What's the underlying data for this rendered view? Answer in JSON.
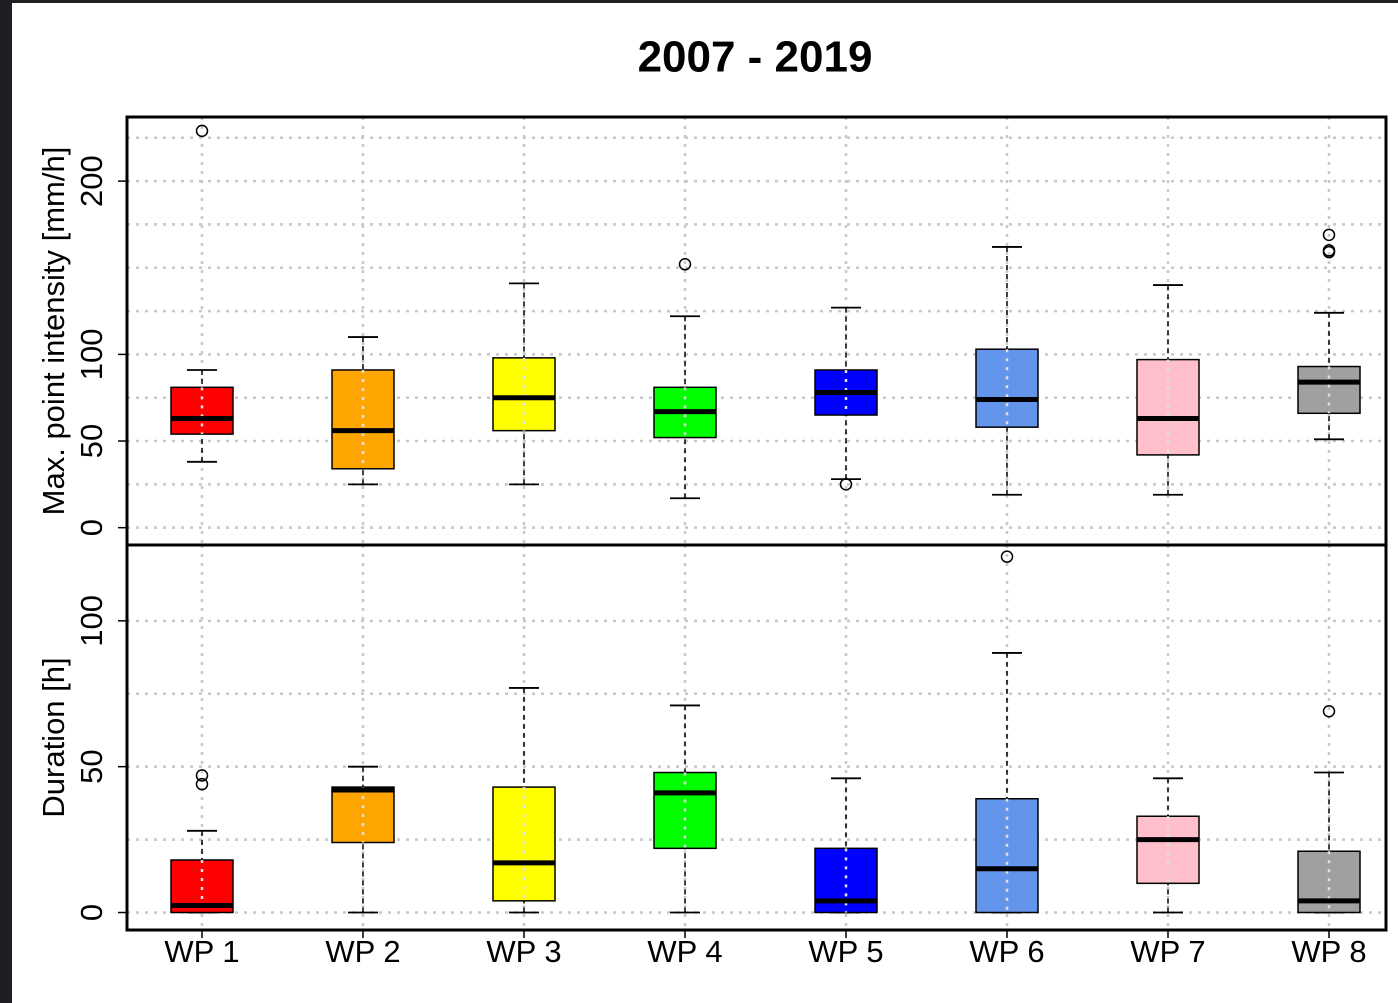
{
  "chart_data": [
    {
      "type": "box",
      "title": "2007 - 2019",
      "ylabel": "Max. point intensity [mm/h]",
      "ylim": [
        -10,
        237
      ],
      "yticks": [
        0,
        50,
        100,
        200
      ],
      "ygrid": [
        0,
        25,
        50,
        75,
        100,
        125,
        150,
        175,
        200,
        225
      ],
      "grid": true,
      "colors": [
        "#ff0000",
        "#ffa500",
        "#ffff00",
        "#00ff00",
        "#0000ff",
        "#6495ed",
        "#ffc0cb",
        "#a0a0a0"
      ],
      "boxes": [
        {
          "whisker_low": 38,
          "q1": 54,
          "median": 63,
          "q3": 81,
          "whisker_high": 91,
          "outliers": [
            229
          ]
        },
        {
          "whisker_low": 25,
          "q1": 34,
          "median": 56,
          "q3": 91,
          "whisker_high": 110,
          "outliers": []
        },
        {
          "whisker_low": 25,
          "q1": 56,
          "median": 75,
          "q3": 98,
          "whisker_high": 141,
          "outliers": []
        },
        {
          "whisker_low": 17,
          "q1": 52,
          "median": 67,
          "q3": 81,
          "whisker_high": 122,
          "outliers": [
            152
          ]
        },
        {
          "whisker_low": 28,
          "q1": 65,
          "median": 78,
          "q3": 91,
          "whisker_high": 127,
          "outliers": [
            25
          ]
        },
        {
          "whisker_low": 19,
          "q1": 58,
          "median": 74,
          "q3": 103,
          "whisker_high": 162,
          "outliers": []
        },
        {
          "whisker_low": 19,
          "q1": 42,
          "median": 63,
          "q3": 97,
          "whisker_high": 140,
          "outliers": []
        },
        {
          "whisker_low": 51,
          "q1": 66,
          "median": 84,
          "q3": 93,
          "whisker_high": 124,
          "outliers": [
            169,
            160,
            159
          ]
        }
      ]
    },
    {
      "type": "box",
      "ylabel": "Duration [h]",
      "categories": [
        "WP 1",
        "WP 2",
        "WP 3",
        "WP 4",
        "WP 5",
        "WP 6",
        "WP 7",
        "WP 8"
      ],
      "ylim": [
        -6,
        126
      ],
      "yticks": [
        0,
        50,
        100
      ],
      "ygrid": [
        0,
        25,
        50,
        75,
        100
      ],
      "grid": true,
      "colors": [
        "#ff0000",
        "#ffa500",
        "#ffff00",
        "#00ff00",
        "#0000ff",
        "#6495ed",
        "#ffc0cb",
        "#a0a0a0"
      ],
      "boxes": [
        {
          "whisker_low": 0,
          "q1": 0,
          "median": 2.4,
          "q3": 18,
          "whisker_high": 28,
          "outliers": [
            47,
            44
          ]
        },
        {
          "whisker_low": 0,
          "q1": 24,
          "median": 42,
          "q3": 43,
          "whisker_high": 50,
          "outliers": []
        },
        {
          "whisker_low": 0,
          "q1": 4,
          "median": 17,
          "q3": 43,
          "whisker_high": 77,
          "outliers": []
        },
        {
          "whisker_low": 0,
          "q1": 22,
          "median": 41,
          "q3": 48,
          "whisker_high": 71,
          "outliers": []
        },
        {
          "whisker_low": 0,
          "q1": 0,
          "median": 4,
          "q3": 22,
          "whisker_high": 46,
          "outliers": []
        },
        {
          "whisker_low": 0,
          "q1": 0,
          "median": 15,
          "q3": 39,
          "whisker_high": 89,
          "outliers": [
            122
          ]
        },
        {
          "whisker_low": 0,
          "q1": 10,
          "median": 25,
          "q3": 33,
          "whisker_high": 46,
          "outliers": []
        },
        {
          "whisker_low": 0,
          "q1": 0,
          "median": 4,
          "q3": 21,
          "whisker_high": 48,
          "outliers": [
            69
          ]
        }
      ]
    }
  ]
}
